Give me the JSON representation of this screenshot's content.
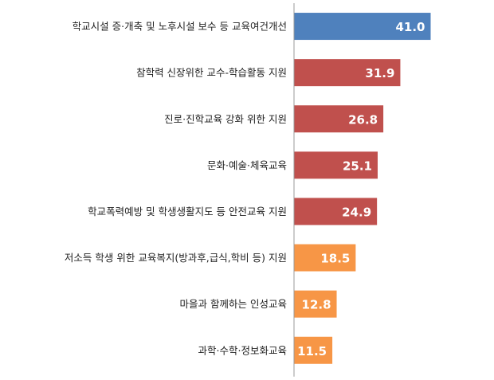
{
  "chart_data": {
    "type": "bar",
    "orientation": "horizontal",
    "title": "",
    "xlabel": "",
    "ylabel": "",
    "xlim": [
      0,
      46
    ],
    "grid": false,
    "legend": "none",
    "categories": [
      "학교시설 증·개축 및 노후시설 보수 등 교육여건개선",
      "참학력 신장위한 교수-학습활동 지원",
      "진로·진학교육 강화 위한 지원",
      "문화·예술·체육교육",
      "학교폭력예방 및 학생생활지도 등 안전교육 지원",
      "저소득 학생 위한 교육복지(방과후,급식,학비 등) 지원",
      "마을과 함께하는 인성교육",
      "과학·수학·정보화교육"
    ],
    "values": [
      41.0,
      31.9,
      26.8,
      25.1,
      24.9,
      18.5,
      12.8,
      11.5
    ],
    "value_labels": [
      "41.0",
      "31.9",
      "26.8",
      "25.1",
      "24.9",
      "18.5",
      "12.8",
      "11.5"
    ],
    "bar_colors": [
      "#4F81BD",
      "#C0504D",
      "#C0504D",
      "#C0504D",
      "#C0504D",
      "#F79646",
      "#F79646",
      "#F79646"
    ],
    "axis_color": "#999999"
  }
}
